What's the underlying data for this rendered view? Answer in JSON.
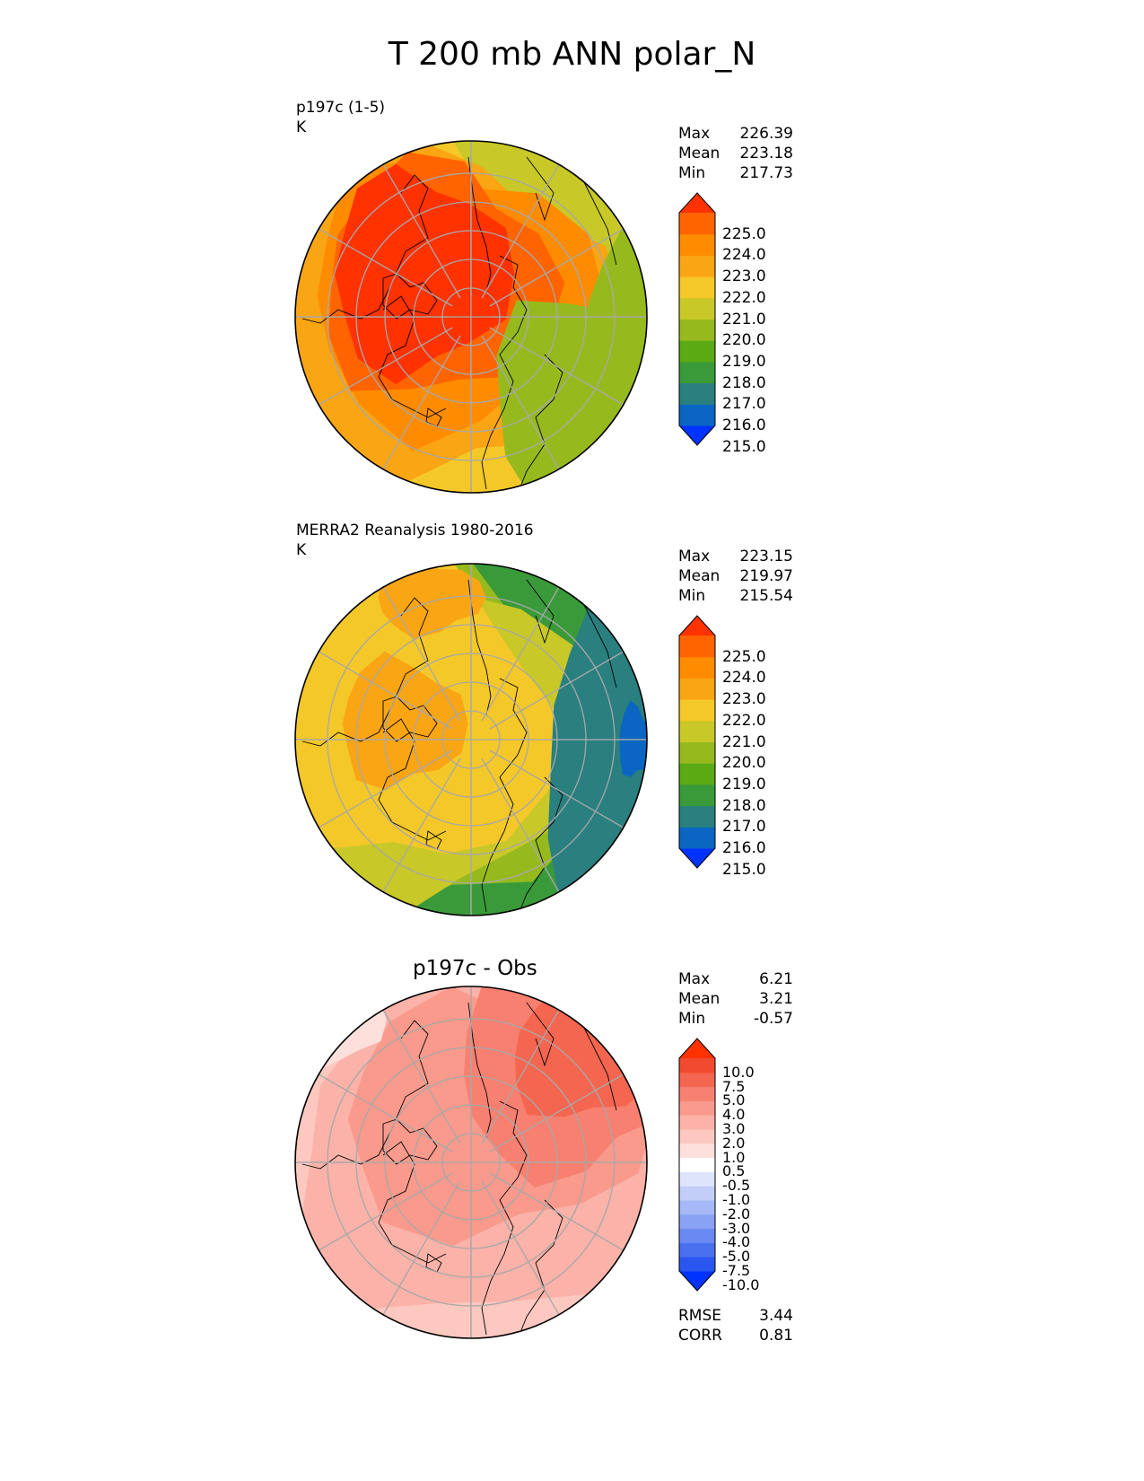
{
  "title": "T 200 mb ANN polar_N",
  "panels": [
    {
      "id": "test",
      "label_line1": "p197c (1-5)",
      "label_line2": "K",
      "stats": [
        {
          "name": "Max",
          "value": "226.39"
        },
        {
          "name": "Mean",
          "value": "223.18"
        },
        {
          "name": "Min",
          "value": "217.73"
        }
      ],
      "colorbar_ticks": [
        "225.0",
        "224.0",
        "223.0",
        "222.0",
        "221.0",
        "220.0",
        "219.0",
        "218.0",
        "217.0",
        "216.0",
        "215.0"
      ]
    },
    {
      "id": "ref",
      "label_line1": "MERRA2 Reanalysis 1980-2016",
      "label_line2": "K",
      "stats": [
        {
          "name": "Max",
          "value": "223.15"
        },
        {
          "name": "Mean",
          "value": "219.97"
        },
        {
          "name": "Min",
          "value": "215.54"
        }
      ],
      "colorbar_ticks": [
        "225.0",
        "224.0",
        "223.0",
        "222.0",
        "221.0",
        "220.0",
        "219.0",
        "218.0",
        "217.0",
        "216.0",
        "215.0"
      ]
    },
    {
      "id": "diff",
      "panel_title": "p197c - Obs",
      "stats": [
        {
          "name": "Max",
          "value": "6.21"
        },
        {
          "name": "Mean",
          "value": "3.21"
        },
        {
          "name": "Min",
          "value": "-0.57"
        }
      ],
      "colorbar_ticks": [
        "10.0",
        "7.5",
        "5.0",
        "4.0",
        "3.0",
        "2.0",
        "1.0",
        "0.5",
        "-0.5",
        "-1.0",
        "-2.0",
        "-3.0",
        "-4.0",
        "-5.0",
        "-7.5",
        "-10.0"
      ],
      "metrics": [
        {
          "name": "RMSE",
          "value": "3.44"
        },
        {
          "name": "CORR",
          "value": "0.81"
        }
      ]
    }
  ],
  "colors": {
    "abs_scale": [
      "#0033ff",
      "#0a66c2",
      "#2a7f7f",
      "#3a9a3a",
      "#5aaa14",
      "#96ba1e",
      "#c8c828",
      "#f4c828",
      "#faa514",
      "#ff8c00",
      "#ff6400",
      "#ff3200"
    ],
    "diff_scale": [
      "#0033ff",
      "#2a55ee",
      "#4a70f0",
      "#6a8af2",
      "#8aa2f4",
      "#a6b8f6",
      "#c2cef8",
      "#dde4fb",
      "#ffffff",
      "#fde0dc",
      "#fcc8c0",
      "#fbb2a8",
      "#f99a8c",
      "#f78070",
      "#f56650",
      "#f24a30",
      "#ff3200"
    ],
    "gridline": "#a8a8a8",
    "coastline": "#000000"
  }
}
